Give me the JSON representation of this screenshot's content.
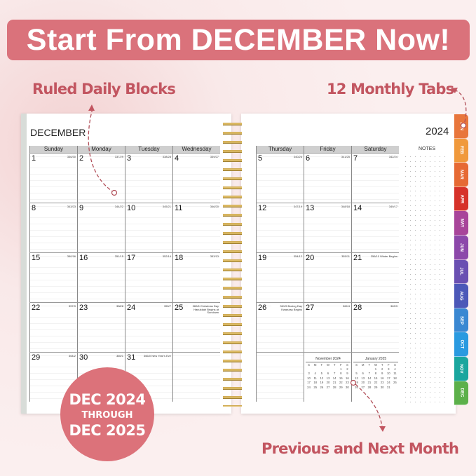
{
  "banner": {
    "title": "Start From DECEMBER Now!"
  },
  "callouts": {
    "ruled": "Ruled Daily Blocks",
    "tabs": "12 Monthly Tabs",
    "prevnext": "Previous and Next Month"
  },
  "badge": {
    "line1": "DEC 2024",
    "line2": "THROUGH",
    "line3": "DEC 2025"
  },
  "planner": {
    "month": "DECEMBER",
    "year": "2024",
    "notes_label": "NOTES",
    "weekdays": [
      "Sunday",
      "Monday",
      "Tuesday",
      "Wednesday",
      "Thursday",
      "Friday",
      "Saturday"
    ],
    "weeks": [
      [
        {
          "d": "1",
          "doy": "336/30"
        },
        {
          "d": "2",
          "doy": "337/29"
        },
        {
          "d": "3",
          "doy": "338/28"
        },
        {
          "d": "4",
          "doy": "339/27"
        },
        {
          "d": "5",
          "doy": "340/26"
        },
        {
          "d": "6",
          "doy": "341/25"
        },
        {
          "d": "7",
          "doy": "342/24"
        }
      ],
      [
        {
          "d": "8",
          "doy": "343/23"
        },
        {
          "d": "9",
          "doy": "344/22"
        },
        {
          "d": "10",
          "doy": "345/21"
        },
        {
          "d": "11",
          "doy": "346/20"
        },
        {
          "d": "12",
          "doy": "347/19"
        },
        {
          "d": "13",
          "doy": "348/18"
        },
        {
          "d": "14",
          "doy": "349/17"
        }
      ],
      [
        {
          "d": "15",
          "doy": "350/16"
        },
        {
          "d": "16",
          "doy": "351/15"
        },
        {
          "d": "17",
          "doy": "352/14"
        },
        {
          "d": "18",
          "doy": "353/13"
        },
        {
          "d": "19",
          "doy": "354/12"
        },
        {
          "d": "20",
          "doy": "355/11"
        },
        {
          "d": "21",
          "doy": "356/10 Winter Begins"
        }
      ],
      [
        {
          "d": "22",
          "doy": "357/9"
        },
        {
          "d": "23",
          "doy": "358/8"
        },
        {
          "d": "24",
          "doy": "359/7"
        },
        {
          "d": "25",
          "doy": "360/6 Christmas Day Hanukkah Begins at Sundown"
        },
        {
          "d": "26",
          "doy": "361/5 Boxing Day Kwanzaa Begins"
        },
        {
          "d": "27",
          "doy": "362/4"
        },
        {
          "d": "28",
          "doy": "363/3"
        }
      ],
      [
        {
          "d": "29",
          "doy": "364/2"
        },
        {
          "d": "30",
          "doy": "365/1"
        },
        {
          "d": "31",
          "doy": "366/0 New Year's Eve"
        },
        {
          "d": "",
          "doy": ""
        },
        {
          "d": "",
          "doy": ""
        },
        {
          "d": "",
          "doy": ""
        },
        {
          "d": "",
          "doy": ""
        }
      ]
    ],
    "mini_prev": {
      "title": "November 2024",
      "days": [
        "S",
        "M",
        "T",
        "W",
        "T",
        "F",
        "S"
      ],
      "rows": [
        [
          "",
          "",
          "",
          "",
          "",
          "1",
          "2"
        ],
        [
          "3",
          "4",
          "5",
          "6",
          "7",
          "8",
          "9"
        ],
        [
          "10",
          "11",
          "12",
          "13",
          "14",
          "15",
          "16"
        ],
        [
          "17",
          "18",
          "19",
          "20",
          "21",
          "22",
          "23"
        ],
        [
          "24",
          "25",
          "26",
          "27",
          "28",
          "29",
          "30"
        ]
      ]
    },
    "mini_next": {
      "title": "January 2025",
      "days": [
        "S",
        "M",
        "T",
        "W",
        "T",
        "F",
        "S"
      ],
      "rows": [
        [
          "",
          "",
          "",
          "1",
          "2",
          "3",
          "4"
        ],
        [
          "5",
          "6",
          "7",
          "8",
          "9",
          "10",
          "11"
        ],
        [
          "12",
          "13",
          "14",
          "15",
          "16",
          "17",
          "18"
        ],
        [
          "19",
          "20",
          "21",
          "22",
          "23",
          "24",
          "25"
        ],
        [
          "26",
          "27",
          "28",
          "29",
          "30",
          "31",
          ""
        ]
      ]
    }
  },
  "tabs": [
    {
      "label": "JAN",
      "color": "#e8763c"
    },
    {
      "label": "FEB",
      "color": "#f0993c"
    },
    {
      "label": "MAR",
      "color": "#e66a34"
    },
    {
      "label": "APR",
      "color": "#d6322a"
    },
    {
      "label": "MAY",
      "color": "#a8459a"
    },
    {
      "label": "JUN",
      "color": "#8c48aa"
    },
    {
      "label": "JUL",
      "color": "#6a50b2"
    },
    {
      "label": "AUG",
      "color": "#4c58b8"
    },
    {
      "label": "SEP",
      "color": "#3a88d2"
    },
    {
      "label": "OCT",
      "color": "#2a9ae0"
    },
    {
      "label": "NOV",
      "color": "#1aa69e"
    },
    {
      "label": "DEC",
      "color": "#5cb04a"
    }
  ],
  "colors": {
    "accent": "#da727b",
    "callout_text": "#c25560"
  }
}
